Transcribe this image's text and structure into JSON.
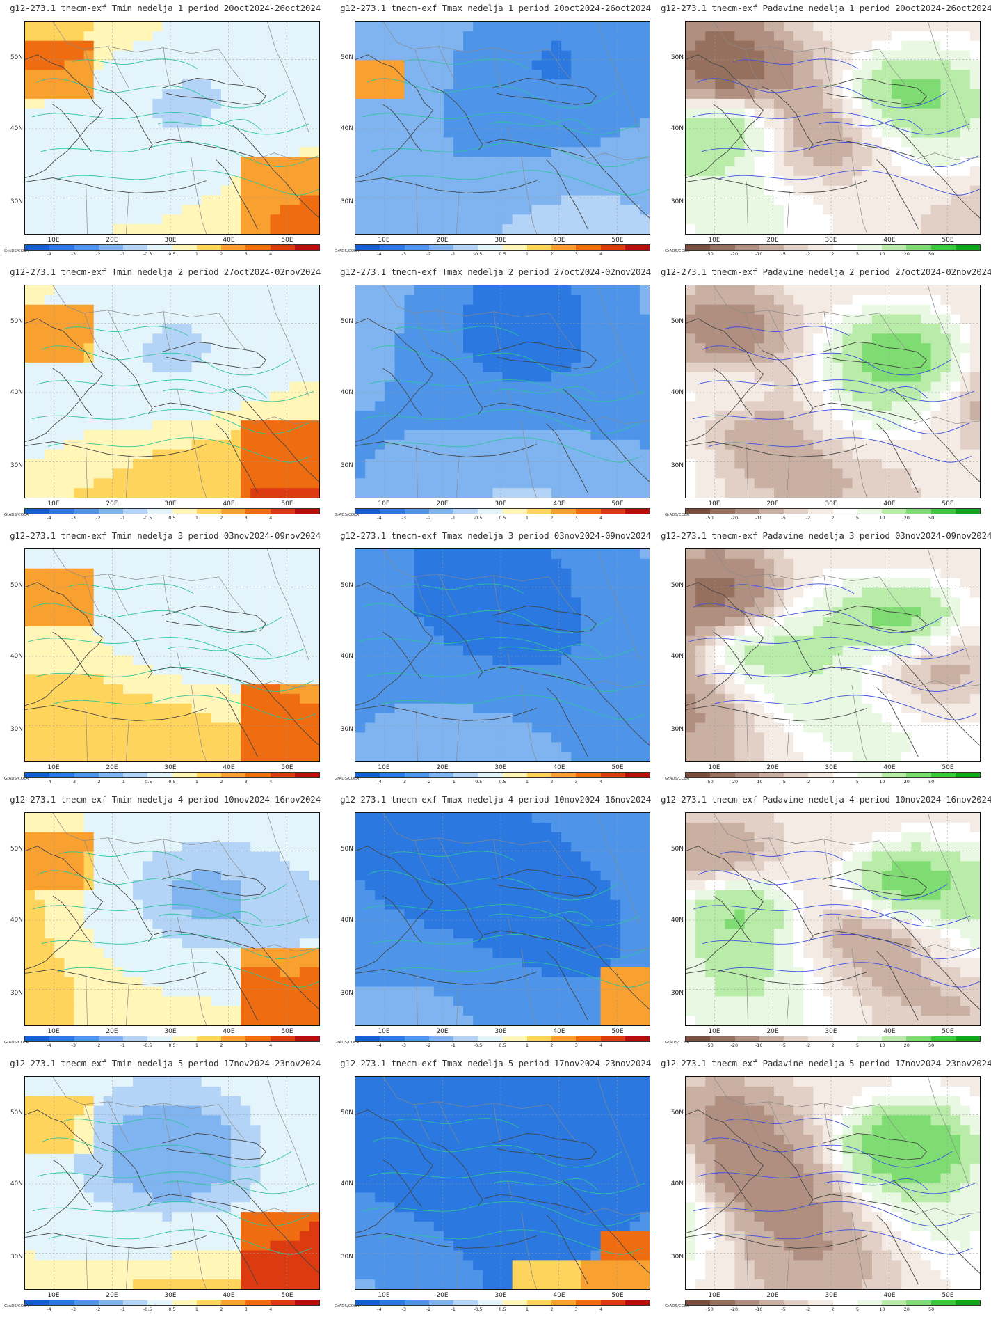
{
  "panels": [
    {
      "title": "g12-273.1 tnecm-exf Tmin nedelja 1 period 20oct2024-26oct2024",
      "var": "tmin",
      "week": 1
    },
    {
      "title": "g12-273.1 tnecm-exf Tmax nedelja 1 period 20oct2024-26oct2024",
      "var": "tmax",
      "week": 1
    },
    {
      "title": "g12-273.1 tnecm-exf Padavine nedelja 1 period 20oct2024-26oct2024",
      "var": "precip",
      "week": 1
    },
    {
      "title": "g12-273.1 tnecm-exf Tmin nedelja 2 period 27oct2024-02nov2024",
      "var": "tmin",
      "week": 2
    },
    {
      "title": "g12-273.1 tnecm-exf Tmax nedelja 2 period 27oct2024-02nov2024",
      "var": "tmax",
      "week": 2
    },
    {
      "title": "g12-273.1 tnecm-exf Padavine nedelja 2 period 27oct2024-02nov2024",
      "var": "precip",
      "week": 2
    },
    {
      "title": "g12-273.1 tnecm-exf Tmin nedelja 3 period 03nov2024-09nov2024",
      "var": "tmin",
      "week": 3
    },
    {
      "title": "g12-273.1 tnecm-exf Tmax nedelja 3 period 03nov2024-09nov2024",
      "var": "tmax",
      "week": 3
    },
    {
      "title": "g12-273.1 tnecm-exf Padavine nedelja 3 period 03nov2024-09nov2024",
      "var": "precip",
      "week": 3
    },
    {
      "title": "g12-273.1 tnecm-exf Tmin nedelja 4 period 10nov2024-16nov2024",
      "var": "tmin",
      "week": 4
    },
    {
      "title": "g12-273.1 tnecm-exf Tmax nedelja 4 period 10nov2024-16nov2024",
      "var": "tmax",
      "week": 4
    },
    {
      "title": "g12-273.1 tnecm-exf Padavine nedelja 4 period 10nov2024-16nov2024",
      "var": "precip",
      "week": 4
    },
    {
      "title": "g12-273.1 tnecm-exf Tmin nedelja 5 period 17nov2024-23nov2024",
      "var": "tmin",
      "week": 5
    },
    {
      "title": "g12-273.1 tnecm-exf Tmax nedelja 5 period 17nov2024-23nov2024",
      "var": "tmax",
      "week": 5
    },
    {
      "title": "g12-273.1 tnecm-exf Padavine nedelja 5 period 17nov2024-23nov2024",
      "var": "precip",
      "week": 5
    }
  ],
  "lat_labels": [
    "50N",
    "40N",
    "30N"
  ],
  "lon_labels": [
    "10E",
    "20E",
    "30E",
    "40E",
    "50E"
  ],
  "credit": "GrADS/COLA",
  "colorbars": {
    "temp": {
      "labels": [
        "-4",
        "-3",
        "-2",
        "-1",
        "-0.5",
        "0.5",
        "1",
        "2",
        "3",
        "4"
      ],
      "colors": [
        "#1560d0",
        "#2a78e0",
        "#4e95ea",
        "#7fb4f0",
        "#b4d4f7",
        "#e4f4fb",
        "#fff6b8",
        "#ffd45c",
        "#f8a030",
        "#ef6c10",
        "#dc3a10",
        "#b80e0a"
      ]
    },
    "precip": {
      "labels": [
        "-50",
        "-20",
        "-10",
        "-5",
        "-2",
        "2",
        "5",
        "10",
        "20",
        "50"
      ],
      "colors": [
        "#7a4e3e",
        "#96705f",
        "#b08f80",
        "#c9b0a3",
        "#e2d0c6",
        "#f4ebe5",
        "#ffffff",
        "#e8f8e2",
        "#b8eca8",
        "#7edc72",
        "#3ec63c",
        "#12a41a"
      ]
    }
  }
}
